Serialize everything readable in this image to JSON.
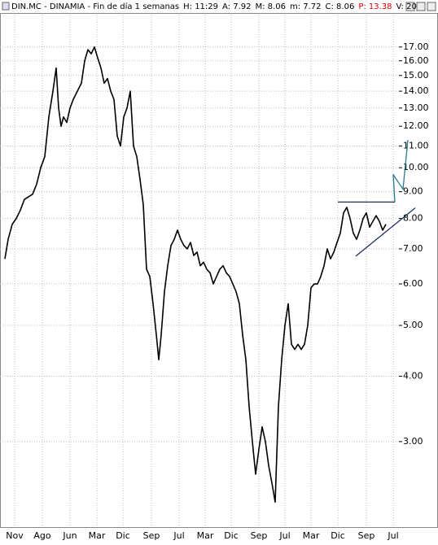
{
  "chart_data": {
    "type": "line",
    "log_y": true,
    "grid": true,
    "header": [
      {
        "text": "DIN.MC - DINAMIA - Fin de día 1 semanas",
        "color": "#000000"
      },
      {
        "text": "H: 11:29",
        "color": "#000000"
      },
      {
        "text": "A: 7.92",
        "color": "#000000"
      },
      {
        "text": "M: 8.06",
        "color": "#000000"
      },
      {
        "text": "m: 7.72",
        "color": "#000000"
      },
      {
        "text": "C: 8.06",
        "color": "#000000"
      },
      {
        "text": "P: 13.38",
        "color": "#e00000"
      },
      {
        "text": "V: 20",
        "color": "#000000"
      }
    ],
    "xlim": [
      0,
      484
    ],
    "xticks": [
      {
        "value": 12,
        "label": "Nov"
      },
      {
        "value": 46,
        "label": "Ago"
      },
      {
        "value": 80,
        "label": "Jun"
      },
      {
        "value": 113,
        "label": "Mar"
      },
      {
        "value": 145,
        "label": "Dic"
      },
      {
        "value": 180,
        "label": "Sep"
      },
      {
        "value": 214,
        "label": "Jul"
      },
      {
        "value": 246,
        "label": "Mar"
      },
      {
        "value": 278,
        "label": "Dic"
      },
      {
        "value": 312,
        "label": "Sep"
      },
      {
        "value": 344,
        "label": "Jul"
      },
      {
        "value": 376,
        "label": "Mar"
      },
      {
        "value": 409,
        "label": "Dic"
      },
      {
        "value": 444,
        "label": "Sep"
      },
      {
        "value": 477,
        "label": "Jul"
      }
    ],
    "ylim": [
      2.12,
      19.6
    ],
    "yticks": [
      {
        "value": 3,
        "label": "3.00"
      },
      {
        "value": 4,
        "label": "4.00"
      },
      {
        "value": 5,
        "label": "5.00"
      },
      {
        "value": 6,
        "label": "6.00"
      },
      {
        "value": 7,
        "label": "7.00"
      },
      {
        "value": 8,
        "label": "8.00"
      },
      {
        "value": 9,
        "label": "9.00"
      },
      {
        "value": 10,
        "label": "10.00"
      },
      {
        "value": 11,
        "label": "11.00"
      },
      {
        "value": 12,
        "label": "12.00"
      },
      {
        "value": 13,
        "label": "13.00"
      },
      {
        "value": 14,
        "label": "14.00"
      },
      {
        "value": 15,
        "label": "15.00"
      },
      {
        "value": 16,
        "label": "16.00"
      },
      {
        "value": 17,
        "label": "17.00"
      }
    ],
    "series": [
      {
        "color": "#000000",
        "x": [
          0,
          4,
          9,
          14,
          19,
          24,
          29,
          34,
          39,
          44,
          49,
          54,
          59,
          63,
          66,
          69,
          72,
          76,
          80,
          84,
          89,
          94,
          98,
          102,
          106,
          110,
          114,
          118,
          122,
          126,
          130,
          134,
          138,
          142,
          146,
          150,
          154,
          158,
          162,
          166,
          170,
          174,
          178,
          182,
          186,
          189,
          192,
          196,
          200,
          204,
          208,
          212,
          216,
          220,
          224,
          228,
          232,
          236,
          240,
          244,
          248,
          252,
          256,
          260,
          264,
          268,
          272,
          276,
          280,
          284,
          288,
          292,
          296,
          300,
          304,
          308,
          312,
          316,
          320,
          324,
          328,
          332,
          336,
          340,
          344,
          348,
          352,
          356,
          360,
          364,
          368,
          372,
          376,
          380,
          384,
          388,
          392,
          396,
          400,
          404,
          408,
          412,
          416,
          420,
          424,
          428,
          432,
          436,
          440,
          444,
          448,
          452,
          456,
          460,
          464,
          468
        ],
        "values": [
          6.7,
          7.3,
          7.8,
          8.0,
          8.3,
          8.7,
          8.8,
          8.9,
          9.3,
          10.0,
          10.5,
          12.5,
          14.0,
          15.5,
          13.0,
          12.0,
          12.5,
          12.2,
          13.0,
          13.5,
          14.0,
          14.5,
          16.0,
          16.8,
          16.5,
          17.0,
          16.2,
          15.5,
          14.5,
          14.8,
          14.0,
          13.5,
          11.5,
          11.0,
          12.5,
          13.0,
          14.0,
          11.0,
          10.5,
          9.5,
          8.5,
          6.4,
          6.2,
          5.5,
          4.8,
          4.3,
          4.8,
          5.8,
          6.5,
          7.1,
          7.3,
          7.6,
          7.3,
          7.1,
          7.0,
          7.2,
          6.8,
          6.9,
          6.5,
          6.6,
          6.4,
          6.3,
          6.0,
          6.2,
          6.4,
          6.5,
          6.3,
          6.2,
          6.0,
          5.8,
          5.5,
          4.8,
          4.3,
          3.5,
          3.0,
          2.6,
          2.9,
          3.2,
          3.0,
          2.7,
          2.5,
          2.3,
          3.5,
          4.3,
          5.0,
          5.5,
          4.6,
          4.5,
          4.6,
          4.5,
          4.6,
          5.0,
          5.9,
          6.0,
          6.0,
          6.2,
          6.5,
          7.0,
          6.7,
          6.9,
          7.2,
          7.5,
          8.2,
          8.4,
          8.0,
          7.5,
          7.3,
          7.6,
          8.0,
          8.2,
          7.7,
          7.9,
          8.1,
          7.9,
          7.6,
          7.8
        ]
      }
    ],
    "drawings": [
      {
        "color": "#1f2f5a",
        "x": [
          409,
          479
        ],
        "values": [
          8.6,
          8.6
        ]
      },
      {
        "color": "#1f2f5a",
        "x": [
          431,
          504
        ],
        "values": [
          6.78,
          8.38
        ]
      },
      {
        "color": "#2a7a8c",
        "x": [
          479,
          477,
          489,
          495
        ],
        "values": [
          8.6,
          9.7,
          9.1,
          11.3
        ]
      }
    ]
  }
}
